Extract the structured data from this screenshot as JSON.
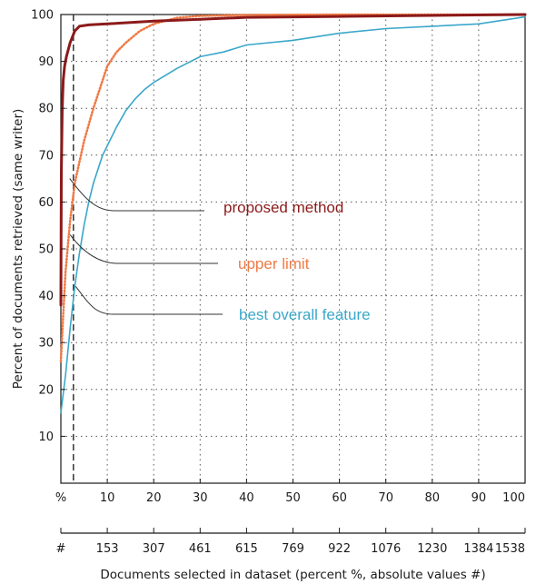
{
  "chart_data": {
    "type": "line",
    "xlabel": "Documents selected in dataset (percent %, absolute values #)",
    "ylabel": "Percent of documents retrieved (same writer)",
    "x_axis_unit_label": "%",
    "x_abs_axis_unit_label": "#",
    "xlim": [
      0,
      100
    ],
    "ylim": [
      0,
      100
    ],
    "x_ticks": [
      10,
      20,
      30,
      40,
      50,
      60,
      70,
      80,
      90,
      100
    ],
    "x_abs_ticks": [
      153,
      307,
      461,
      615,
      769,
      922,
      1076,
      1230,
      1384,
      1538
    ],
    "y_ticks": [
      10,
      20,
      30,
      40,
      50,
      60,
      70,
      80,
      90,
      100
    ],
    "grid": true,
    "reference_line_x": 2.7,
    "series": [
      {
        "name": "proposed method",
        "color": "#8b1a1a",
        "style": "solid",
        "x": [
          0,
          0.1,
          0.3,
          0.5,
          0.8,
          1.2,
          2,
          3,
          4,
          6,
          10,
          20,
          30,
          40,
          60,
          80,
          100
        ],
        "y": [
          38,
          66,
          80,
          86,
          89,
          91,
          94,
          96.5,
          97.5,
          97.8,
          98,
          98.6,
          99,
          99.4,
          99.6,
          99.8,
          100
        ]
      },
      {
        "name": "upper limit",
        "color": "#f07a45",
        "style": "dotted",
        "x": [
          0,
          0.5,
          1,
          2,
          3,
          5,
          7,
          9,
          10,
          12,
          14,
          17,
          20,
          25,
          30,
          40,
          60,
          100
        ],
        "y": [
          26,
          36,
          45,
          56,
          64,
          73,
          80,
          86,
          89,
          92,
          94,
          96.5,
          98,
          99.3,
          99.7,
          99.9,
          100,
          100
        ]
      },
      {
        "name": "best overall feature",
        "color": "#3aa7c9",
        "style": "solid",
        "x": [
          0,
          1,
          2,
          3,
          4,
          5,
          6,
          7,
          8,
          9,
          10,
          12,
          14,
          16,
          18,
          20,
          25,
          30,
          35,
          40,
          50,
          60,
          70,
          80,
          90,
          100
        ],
        "y": [
          15,
          23,
          33,
          42,
          49,
          55,
          60,
          64,
          67,
          70,
          72,
          76,
          79.5,
          82,
          84,
          85.5,
          88.5,
          91,
          92,
          93.5,
          94.5,
          96,
          97,
          97.5,
          98,
          99.5
        ]
      }
    ],
    "annotations": [
      {
        "text": "proposed method",
        "color": "#8b1a1a",
        "target_x": 1.9,
        "target_y": 65
      },
      {
        "text": "upper limit",
        "color": "#f07a45",
        "target_x": 2.0,
        "target_y": 53
      },
      {
        "text": "best overall feature",
        "color": "#3aa7c9",
        "target_x": 3.2,
        "target_y": 42
      }
    ]
  }
}
